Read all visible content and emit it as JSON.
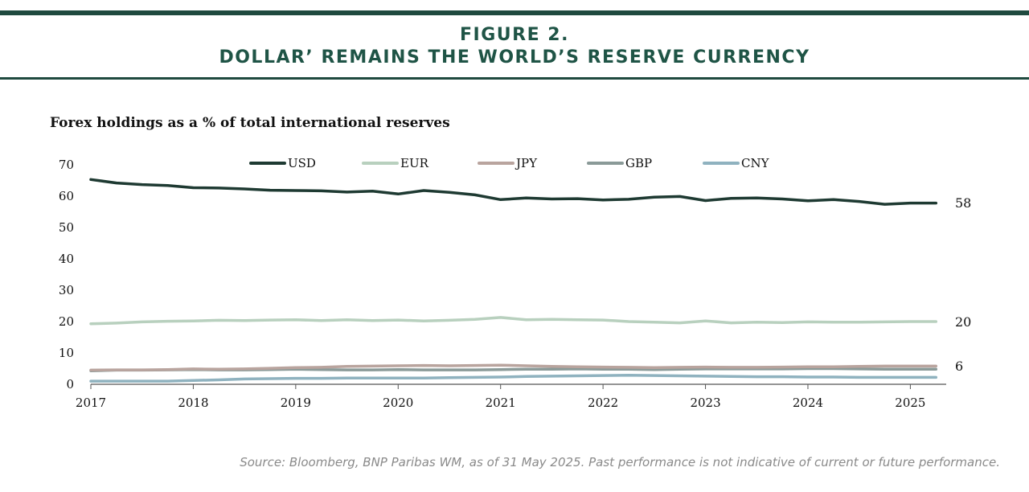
{
  "header": {
    "figure_label": "FIGURE 2.",
    "title": "DOLLAR’ REMAINS THE WORLD’S RESERVE CURRENCY"
  },
  "source": "Source: Bloomberg, BNP Paribas WM, as of 31 May 2025. Past performance is not indicative of current or future performance.",
  "chart_data": {
    "type": "line",
    "title": "Forex holdings as a % of total international reserves",
    "xlabel": "",
    "ylabel": "",
    "xlim": [
      2017,
      2025.35
    ],
    "ylim": [
      0,
      70
    ],
    "x_ticks": [
      "2017",
      "2018",
      "2019",
      "2020",
      "2021",
      "2022",
      "2023",
      "2024",
      "2025"
    ],
    "y_ticks": [
      "0",
      "10",
      "20",
      "30",
      "40",
      "50",
      "60",
      "70"
    ],
    "grid": false,
    "legend_position": "top-center",
    "x": [
      2017.0,
      2017.25,
      2017.5,
      2017.75,
      2018.0,
      2018.25,
      2018.5,
      2018.75,
      2019.0,
      2019.25,
      2019.5,
      2019.75,
      2020.0,
      2020.25,
      2020.5,
      2020.75,
      2021.0,
      2021.25,
      2021.5,
      2021.75,
      2022.0,
      2022.25,
      2022.5,
      2022.75,
      2023.0,
      2023.25,
      2023.5,
      2023.75,
      2024.0,
      2024.25,
      2024.5,
      2024.75,
      2025.0,
      2025.25
    ],
    "series": [
      {
        "name": "USD",
        "color": "#1e3a32",
        "values": [
          65.3,
          64.2,
          63.7,
          63.4,
          62.7,
          62.6,
          62.3,
          61.9,
          61.8,
          61.7,
          61.3,
          61.6,
          60.7,
          61.8,
          61.2,
          60.4,
          58.9,
          59.4,
          59.1,
          59.2,
          58.8,
          59.0,
          59.7,
          59.9,
          58.6,
          59.3,
          59.4,
          59.1,
          58.5,
          58.9,
          58.3,
          57.4,
          57.8,
          57.8
        ],
        "end_label": "58"
      },
      {
        "name": "EUR",
        "color": "#b8d0be",
        "values": [
          19.3,
          19.5,
          19.9,
          20.1,
          20.2,
          20.4,
          20.3,
          20.5,
          20.6,
          20.3,
          20.6,
          20.3,
          20.5,
          20.2,
          20.4,
          20.7,
          21.3,
          20.6,
          20.7,
          20.6,
          20.5,
          20.0,
          19.8,
          19.6,
          20.2,
          19.6,
          19.8,
          19.7,
          19.9,
          19.8,
          19.8,
          19.9,
          20.0,
          20.0
        ],
        "end_label": "20"
      },
      {
        "name": "JPY",
        "color": "#b9a49e",
        "values": [
          4.5,
          4.6,
          4.6,
          4.7,
          4.9,
          4.8,
          4.9,
          5.1,
          5.3,
          5.4,
          5.7,
          5.8,
          5.9,
          6.0,
          5.9,
          6.0,
          6.1,
          5.9,
          5.7,
          5.6,
          5.5,
          5.4,
          5.3,
          5.4,
          5.5,
          5.4,
          5.4,
          5.5,
          5.6,
          5.6,
          5.7,
          5.8,
          5.8,
          5.8
        ],
        "end_label": "6"
      },
      {
        "name": "GBP",
        "color": "#8a9a98",
        "values": [
          4.3,
          4.5,
          4.5,
          4.6,
          4.7,
          4.6,
          4.6,
          4.7,
          4.8,
          4.7,
          4.6,
          4.6,
          4.7,
          4.6,
          4.6,
          4.6,
          4.7,
          4.8,
          4.8,
          4.9,
          4.8,
          4.8,
          4.7,
          4.8,
          4.9,
          4.9,
          4.9,
          4.9,
          5.0,
          5.0,
          4.9,
          4.8,
          4.8,
          4.8
        ],
        "end_label": ""
      },
      {
        "name": "CNY",
        "color": "#8fb2bf",
        "values": [
          1.0,
          1.0,
          1.0,
          1.0,
          1.2,
          1.4,
          1.7,
          1.8,
          1.9,
          1.9,
          2.0,
          2.0,
          2.0,
          2.0,
          2.1,
          2.2,
          2.3,
          2.5,
          2.6,
          2.7,
          2.8,
          2.9,
          2.8,
          2.7,
          2.6,
          2.5,
          2.4,
          2.4,
          2.3,
          2.3,
          2.2,
          2.2,
          2.2,
          2.2
        ],
        "end_label": ""
      }
    ]
  }
}
